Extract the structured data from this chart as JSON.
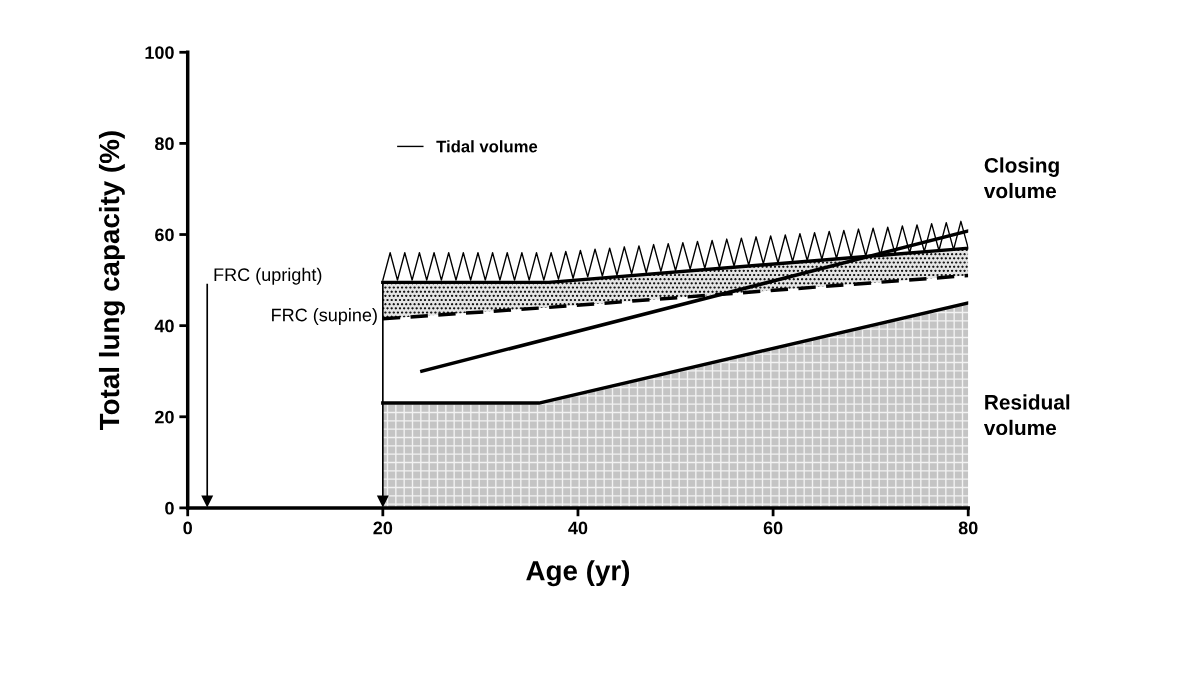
{
  "chart_data": {
    "type": "line",
    "xlabel": "Age (yr)",
    "ylabel": "Total lung capacity (%)",
    "xlim": [
      0,
      80
    ],
    "ylim": [
      0,
      100
    ],
    "xticks": [
      0,
      20,
      40,
      60,
      80
    ],
    "yticks": [
      0,
      20,
      40,
      60,
      80,
      100
    ],
    "grid": false,
    "legend": "top left",
    "series": [
      {
        "type": "area",
        "color": "#c4c4c4",
        "x": [
          20,
          36,
          80
        ],
        "values": [
          23,
          23,
          45
        ]
      },
      {
        "color": "#000000",
        "x": [
          20,
          37,
          80
        ],
        "values": [
          49.5,
          49.5,
          57
        ],
        "lower": [
          41.5,
          44,
          51
        ],
        "upper": [
          49.5,
          49.5,
          57
        ]
      },
      {
        "color": "#000000",
        "line_style": "dashed",
        "x": [
          20,
          37,
          80
        ],
        "values": [
          41.5,
          44,
          51
        ]
      },
      {
        "color": "#000000",
        "x": [
          24,
          80
        ],
        "values": [
          30,
          60.8
        ]
      },
      {
        "color": "#000000",
        "name": "Tidal volume",
        "x": [
          20,
          20.75,
          21.5,
          22.25,
          23,
          23.75,
          24.5,
          25.25,
          26,
          26.75,
          27.5,
          28.25,
          29,
          29.75,
          30.5,
          31.25,
          32,
          32.75,
          33.5,
          34.25,
          35,
          35.75,
          36.5,
          37.25,
          38,
          38.75,
          39.5,
          40.25,
          41,
          41.75,
          42.5,
          43.25,
          44,
          44.75,
          45.5,
          46.25,
          47,
          47.75,
          48.5,
          49.25,
          50,
          50.75,
          51.5,
          52.25,
          53,
          53.75,
          54.5,
          55.25,
          56,
          56.75,
          57.5,
          58.25,
          59,
          59.75,
          60.5,
          61.25,
          62,
          62.75,
          63.5,
          64.25,
          65,
          65.75,
          66.5,
          67.25,
          68,
          68.75,
          69.5,
          70.25,
          71,
          71.75,
          72.5,
          73.25,
          74,
          74.75,
          75.5,
          76.25,
          77,
          77.75,
          78.5,
          79.25,
          80
        ],
        "values": [
          50,
          56,
          50,
          56,
          50,
          56,
          50,
          56,
          50,
          56,
          50,
          56,
          50,
          56,
          50,
          56,
          50,
          56,
          50,
          56,
          50,
          56,
          50,
          56,
          50.2,
          56.3,
          50.4,
          56.5,
          50.7,
          56.8,
          50.9,
          57.0,
          51.1,
          57.3,
          51.4,
          57.5,
          51.6,
          57.8,
          51.9,
          58.0,
          52.1,
          58.2,
          52.4,
          58.5,
          52.6,
          58.7,
          52.8,
          59.0,
          53.1,
          59.2,
          53.3,
          59.5,
          53.6,
          59.7,
          53.8,
          59.9,
          54.1,
          60.2,
          54.3,
          60.4,
          54.6,
          60.7,
          54.8,
          60.9,
          55.0,
          61.2,
          55.3,
          61.4,
          55.5,
          61.6,
          55.8,
          61.9,
          56.0,
          62.1,
          56.3,
          62.4,
          56.5,
          62.6,
          56.7,
          62.9,
          57
        ]
      }
    ],
    "ref_lines": [
      {
        "axis": "x",
        "value": 2,
        "label": "FRC (upright)"
      },
      {
        "axis": "x",
        "value": 20,
        "label": "FRC (supine)"
      }
    ],
    "annotations": [
      "Closing\nvolume",
      "Residual\nvolume"
    ]
  }
}
